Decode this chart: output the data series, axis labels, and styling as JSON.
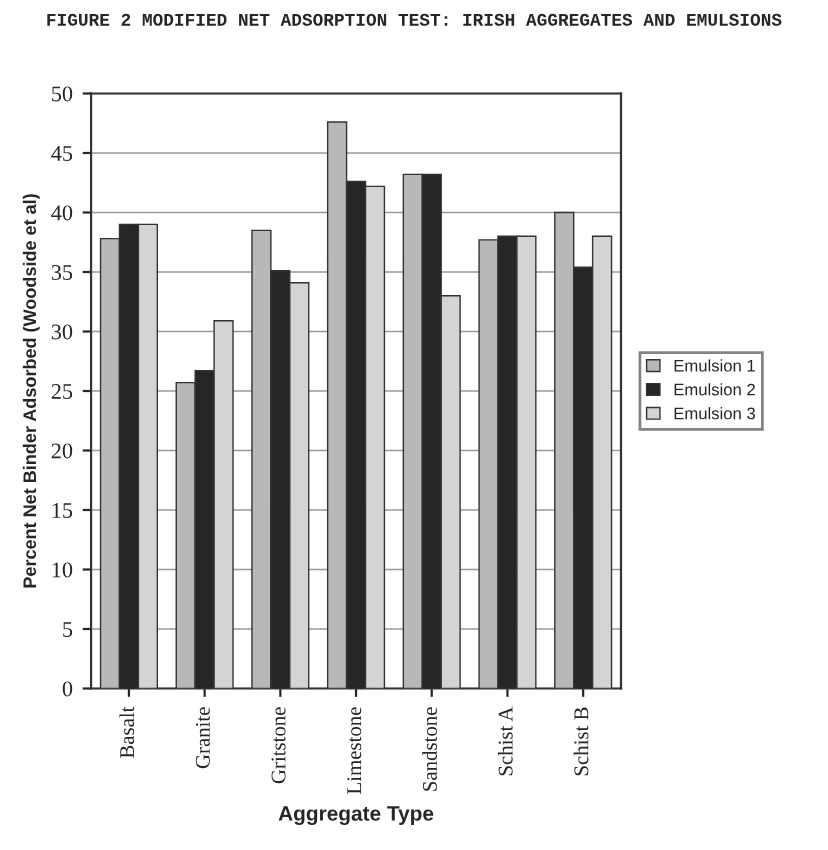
{
  "chart_data": {
    "type": "bar",
    "title": "FIGURE 2 MODIFIED NET ADSORPTION TEST: IRISH AGGREGATES AND EMULSIONS",
    "xlabel": "Aggregate Type",
    "ylabel": "Percent Net Binder Adsorbed (Woodside et al)",
    "categories": [
      "Basalt",
      "Granite",
      "Gritstone",
      "Limestone",
      "Sandstone",
      "Schist A",
      "Schist B"
    ],
    "series": [
      {
        "name": "Emulsion 1",
        "color": "#b8b8b8",
        "values": [
          37.8,
          25.7,
          38.5,
          47.6,
          43.2,
          37.7,
          40.0
        ]
      },
      {
        "name": "Emulsion 2",
        "color": "#262626",
        "values": [
          39.0,
          26.7,
          35.1,
          42.6,
          43.2,
          38.0,
          35.4
        ]
      },
      {
        "name": "Emulsion 3",
        "color": "#d4d4d4",
        "values": [
          39.0,
          30.9,
          34.1,
          42.2,
          33.0,
          38.0,
          38.0
        ]
      }
    ],
    "ylim": [
      0,
      50
    ],
    "yticks": [
      0,
      5,
      10,
      15,
      20,
      25,
      30,
      35,
      40,
      45,
      50
    ],
    "grid": "y",
    "legend": "right"
  }
}
